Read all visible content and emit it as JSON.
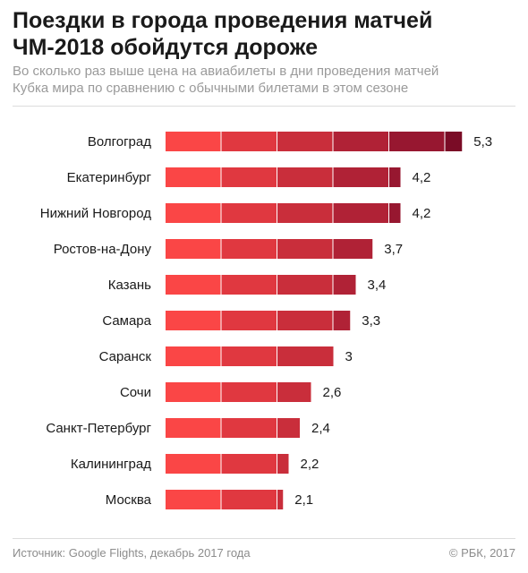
{
  "header": {
    "title_line1": "Поездки в города проведения матчей",
    "title_line2": "ЧМ-2018 обойдутся дороже",
    "subtitle_line1": "Во сколько раз выше цена на авиабилеты в дни проведения матчей",
    "subtitle_line2": "Кубка мира по сравнению с обычными билетами в этом сезоне"
  },
  "chart_data": {
    "type": "bar",
    "orientation": "horizontal",
    "categories": [
      "Волгоград",
      "Екатеринбург",
      "Нижний Новгород",
      "Ростов-на-Дону",
      "Казань",
      "Самара",
      "Саранск",
      "Сочи",
      "Санкт-Петербург",
      "Калининград",
      "Москва"
    ],
    "values": [
      5.3,
      4.2,
      4.2,
      3.7,
      3.4,
      3.3,
      3,
      2.6,
      2.4,
      2.2,
      2.1
    ],
    "value_labels": [
      "5,3",
      "4,2",
      "4,2",
      "3,7",
      "3,4",
      "3,3",
      "3",
      "2,6",
      "2,4",
      "2,2",
      "2,1"
    ],
    "title": "Поездки в города проведения матчей ЧМ-2018 обойдутся дороже",
    "xlabel": "",
    "ylabel": "",
    "xlim": [
      0,
      5.3
    ],
    "segment_step": 1,
    "segment_colors": [
      "#fa4646",
      "#e03840",
      "#c92e3b",
      "#b02236",
      "#971730",
      "#7a0c26"
    ],
    "grid": false,
    "legend": "none"
  },
  "footer": {
    "source": "Источник: Google Flights, декабрь 2017 года",
    "copyright": "© РБК, 2017"
  }
}
